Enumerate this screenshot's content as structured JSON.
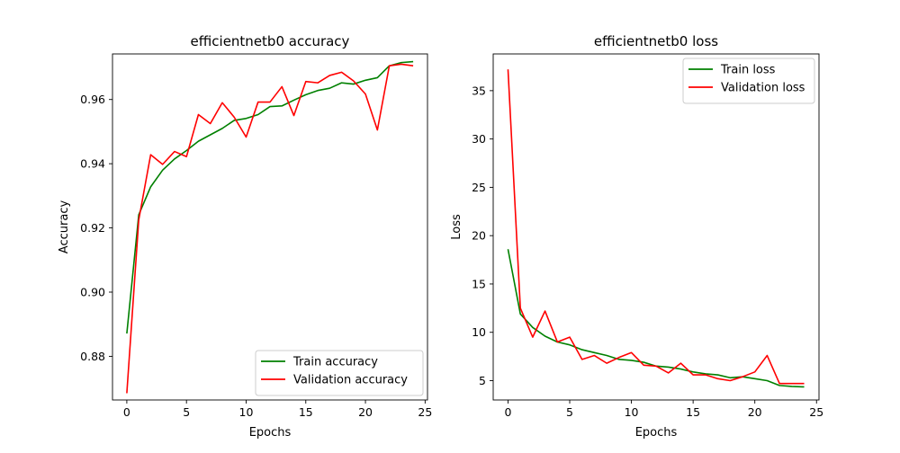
{
  "chart_data": [
    {
      "type": "line",
      "title": "efficientnetb0 accuracy",
      "xlabel": "Epochs",
      "ylabel": "Accuracy",
      "xlim": [
        -1.2,
        25.2
      ],
      "ylim": [
        0.8664,
        0.9742
      ],
      "xticks": [
        0,
        5,
        10,
        15,
        20,
        25
      ],
      "yticks": [
        0.88,
        0.9,
        0.92,
        0.94,
        0.96
      ],
      "ytick_labels": [
        "0.88",
        "0.90",
        "0.92",
        "0.94",
        "0.96"
      ],
      "grid": false,
      "legend_position": "lower-right",
      "x": [
        0,
        1,
        2,
        3,
        4,
        5,
        6,
        7,
        8,
        9,
        10,
        11,
        12,
        13,
        14,
        15,
        16,
        17,
        18,
        19,
        20,
        21,
        22,
        23,
        24
      ],
      "series": [
        {
          "name": "Train accuracy",
          "color": "#008000",
          "values": [
            0.8871,
            0.9241,
            0.9328,
            0.938,
            0.9415,
            0.9441,
            0.947,
            0.949,
            0.951,
            0.9535,
            0.9541,
            0.9553,
            0.9578,
            0.958,
            0.9598,
            0.9615,
            0.9628,
            0.9635,
            0.9652,
            0.9648,
            0.966,
            0.9668,
            0.9705,
            0.9715,
            0.9718
          ]
        },
        {
          "name": "Validation accuracy",
          "color": "#ff0000",
          "values": [
            0.8685,
            0.9225,
            0.9428,
            0.9398,
            0.9438,
            0.9422,
            0.9553,
            0.9525,
            0.959,
            0.9545,
            0.9483,
            0.9592,
            0.9592,
            0.964,
            0.955,
            0.9656,
            0.9652,
            0.9675,
            0.9685,
            0.9658,
            0.9617,
            0.9505,
            0.9705,
            0.971,
            0.9705
          ]
        }
      ]
    },
    {
      "type": "line",
      "title": "efficientnetb0 loss",
      "xlabel": "Epochs",
      "ylabel": "Loss",
      "xlim": [
        -1.2,
        25.2
      ],
      "ylim": [
        3.0,
        38.8
      ],
      "xticks": [
        0,
        5,
        10,
        15,
        20,
        25
      ],
      "yticks": [
        5,
        10,
        15,
        20,
        25,
        30,
        35
      ],
      "ytick_labels": [
        "5",
        "10",
        "15",
        "20",
        "25",
        "30",
        "35"
      ],
      "grid": false,
      "legend_position": "upper-right",
      "x": [
        0,
        1,
        2,
        3,
        4,
        5,
        6,
        7,
        8,
        9,
        10,
        11,
        12,
        13,
        14,
        15,
        16,
        17,
        18,
        19,
        20,
        21,
        22,
        23,
        24
      ],
      "series": [
        {
          "name": "Train loss",
          "color": "#008000",
          "values": [
            18.6,
            11.9,
            10.5,
            9.6,
            9.0,
            8.7,
            8.2,
            7.9,
            7.6,
            7.2,
            7.1,
            6.9,
            6.5,
            6.4,
            6.2,
            5.9,
            5.7,
            5.6,
            5.3,
            5.4,
            5.2,
            5.0,
            4.5,
            4.4,
            4.35
          ]
        },
        {
          "name": "Validation loss",
          "color": "#ff0000",
          "values": [
            37.2,
            12.5,
            9.5,
            12.2,
            9.0,
            9.5,
            7.2,
            7.6,
            6.8,
            7.4,
            7.9,
            6.6,
            6.5,
            5.8,
            6.8,
            5.6,
            5.6,
            5.2,
            5.0,
            5.4,
            5.9,
            7.6,
            4.7,
            4.7,
            4.7
          ]
        }
      ]
    }
  ]
}
